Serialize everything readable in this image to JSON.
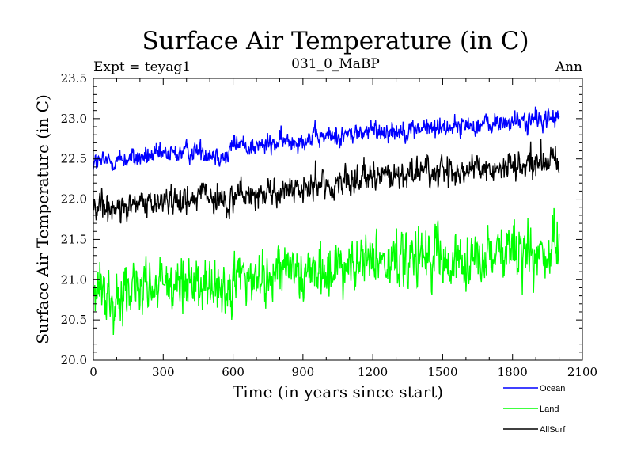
{
  "chart_data": {
    "type": "line",
    "title": "Surface Air Temperature (in C)",
    "subtitle": "031_0_MaBP",
    "left_label": "Expt = teyag1",
    "right_label": "Ann",
    "xlabel": "Time (in years since start)",
    "ylabel": "Surface Air Temperature (in C)",
    "xlim": [
      0,
      2100
    ],
    "ylim": [
      20.0,
      23.5
    ],
    "xticks": [
      0,
      300,
      600,
      900,
      1200,
      1500,
      1800,
      2100
    ],
    "xtick_labels": [
      "0",
      "300",
      "600",
      "900",
      "1200",
      "1500",
      "1800",
      "2100"
    ],
    "yticks": [
      20.0,
      20.5,
      21.0,
      21.5,
      22.0,
      22.5,
      23.0,
      23.5
    ],
    "ytick_labels": [
      "20.0",
      "20.5",
      "21.0",
      "21.5",
      "22.0",
      "22.5",
      "23.0",
      "23.5"
    ],
    "grid": false,
    "legend_position": "bottom-right",
    "x_range": [
      0,
      2000
    ],
    "series": [
      {
        "name": "Ocean",
        "color": "#0000ff",
        "trend_x": [
          0,
          150,
          300,
          450,
          550,
          575,
          600,
          700,
          900,
          1100,
          1200,
          1300,
          1500,
          1700,
          1900,
          2000
        ],
        "trend_y": [
          22.45,
          22.5,
          22.55,
          22.6,
          22.55,
          22.5,
          22.7,
          22.65,
          22.75,
          22.8,
          22.85,
          22.85,
          22.9,
          22.93,
          22.98,
          23.02
        ],
        "noise": 0.13
      },
      {
        "name": "Land",
        "color": "#00ff00",
        "trend_x": [
          0,
          150,
          300,
          450,
          550,
          575,
          600,
          700,
          900,
          1100,
          1200,
          1300,
          1500,
          1700,
          1900,
          2000
        ],
        "trend_y": [
          20.85,
          20.85,
          20.9,
          20.95,
          20.9,
          20.85,
          21.05,
          21.0,
          21.1,
          21.15,
          21.25,
          21.2,
          21.25,
          21.3,
          21.35,
          21.38
        ],
        "noise": 0.35
      },
      {
        "name": "AllSurf",
        "color": "#000000",
        "trend_x": [
          0,
          150,
          300,
          450,
          550,
          575,
          600,
          700,
          900,
          1100,
          1200,
          1300,
          1500,
          1700,
          1900,
          2000
        ],
        "trend_y": [
          21.92,
          21.92,
          21.98,
          22.02,
          21.98,
          21.9,
          22.08,
          22.05,
          22.15,
          22.2,
          22.28,
          22.28,
          22.33,
          22.37,
          22.43,
          22.48
        ],
        "noise": 0.18
      }
    ]
  }
}
